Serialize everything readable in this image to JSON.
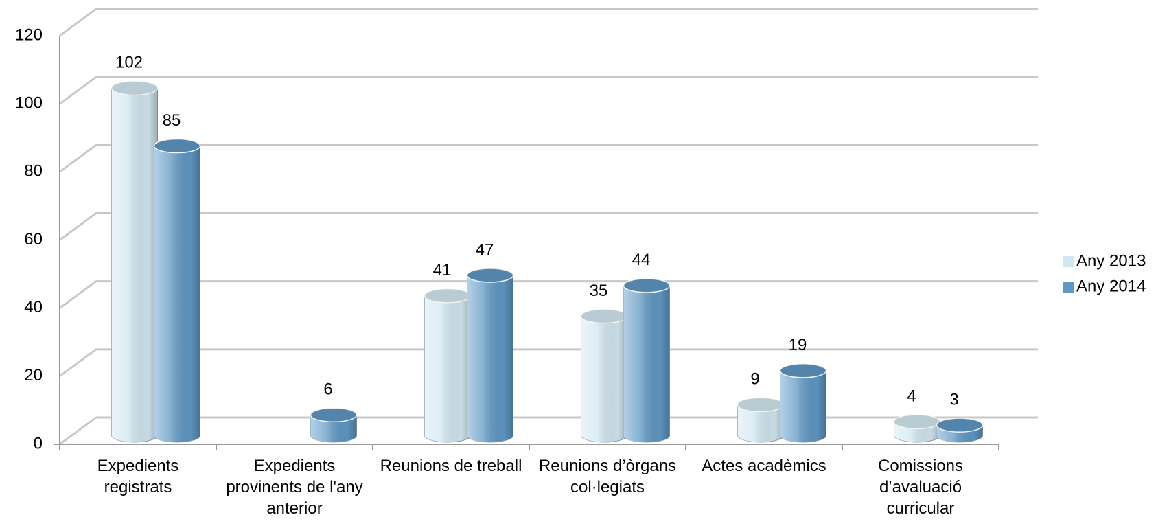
{
  "chart_data": {
    "type": "bar3d",
    "categories": [
      "Expedients registrats",
      "Expedients provinents de l'any anterior",
      "Reunions de treball",
      "Reunions d’òrgans col·legiats",
      "Actes acadèmics",
      "Comissions d’avaluació curricular"
    ],
    "series": [
      {
        "name": "Any 2013",
        "color": "#d3e7f1",
        "values": [
          102,
          null,
          41,
          35,
          9,
          4
        ]
      },
      {
        "name": "Any 2014",
        "color": "#5f98c4",
        "values": [
          85,
          6,
          47,
          44,
          19,
          3
        ]
      }
    ],
    "ylim": [
      0,
      120
    ],
    "yticks": [
      0,
      20,
      40,
      60,
      80,
      100,
      120
    ],
    "grid": true,
    "legend": "right"
  }
}
